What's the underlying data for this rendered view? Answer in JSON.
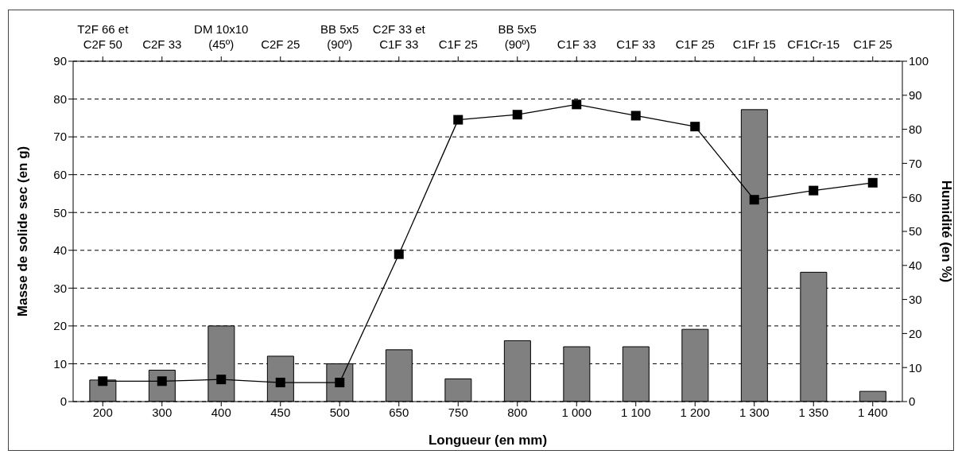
{
  "chart_data": {
    "type": "bar",
    "xlabel": "Longueur (en mm)",
    "ylabel": "Masse de solide sec (en g)",
    "y2label": "Humidité (en %)",
    "categories": [
      "200",
      "300",
      "400",
      "450",
      "500",
      "650",
      "750",
      "800",
      "1 000",
      "1 100",
      "1 200",
      "1 300",
      "1 350",
      "1 400"
    ],
    "series": [
      {
        "color": "#808080",
        "values": [
          5.7,
          8.3,
          20,
          12,
          10,
          13.7,
          6,
          16.1,
          14.5,
          14.5,
          19.1,
          77.2,
          34.2,
          2.7
        ]
      },
      {
        "type": "line",
        "axis": "y2",
        "color": "#000000",
        "marker": "square",
        "line_style": "solid",
        "values": [
          6,
          6,
          6.5,
          5.6,
          5.6,
          43.3,
          82.8,
          84.3,
          87.3,
          84,
          80.8,
          59.3,
          62,
          64.3
        ]
      }
    ],
    "ylim": [
      0,
      90
    ],
    "yticks": [
      0,
      10,
      20,
      30,
      40,
      50,
      60,
      70,
      80,
      90
    ],
    "y2lim": [
      0,
      100
    ],
    "y2ticks": [
      0,
      10,
      20,
      30,
      40,
      50,
      60,
      70,
      80,
      90,
      100
    ],
    "grid": "y",
    "legend": false,
    "annotations": [
      {
        "text": "T2F 66 et\nC2F 50",
        "x": "200"
      },
      {
        "text": "C2F 33",
        "x": "300"
      },
      {
        "text": "DM 10x10\n(45º)",
        "x": "400"
      },
      {
        "text": "C2F 25",
        "x": "450"
      },
      {
        "text": "BB 5x5\n(90º)",
        "x": "500"
      },
      {
        "text": "C2F 33 et\nC1F 33",
        "x": "650"
      },
      {
        "text": "C1F 25",
        "x": "750"
      },
      {
        "text": "BB 5x5\n(90º)",
        "x": "800"
      },
      {
        "text": "C1F 33",
        "x": "1 000"
      },
      {
        "text": "C1F 33",
        "x": "1 100"
      },
      {
        "text": "C1F 25",
        "x": "1 200"
      },
      {
        "text": "C1Fr 15",
        "x": "1 300"
      },
      {
        "text": "CF1Cr-15",
        "x": "1 350"
      },
      {
        "text": "C1F 25",
        "x": "1 400"
      }
    ]
  }
}
